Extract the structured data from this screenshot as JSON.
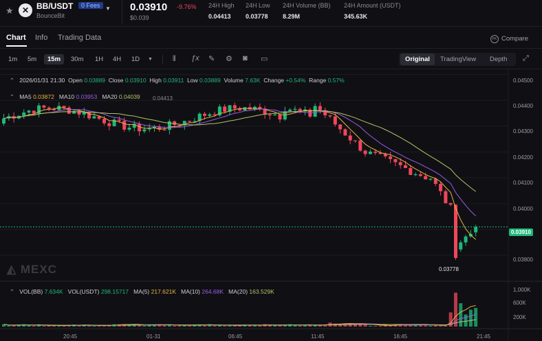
{
  "header": {
    "pair": "BB/USDT",
    "fees_badge": "0 Fees",
    "exchange": "BounceBit",
    "price": "0.03910",
    "change": "-9.76%",
    "usd_price": "$0.039",
    "stats": [
      {
        "label": "24H High",
        "value": "0.04413"
      },
      {
        "label": "24H Low",
        "value": "0.03778"
      },
      {
        "label": "24H Volume (BB)",
        "value": "8.29M"
      },
      {
        "label": "24H Amount (USDT)",
        "value": "345.63K"
      }
    ]
  },
  "tabs": [
    "Chart",
    "Info",
    "Trading Data"
  ],
  "compare_label": "Compare",
  "timeframes": [
    "1m",
    "5m",
    "15m",
    "30m",
    "1H",
    "4H",
    "1D"
  ],
  "active_timeframe": "15m",
  "view_modes": [
    "Original",
    "TradingView",
    "Depth"
  ],
  "active_view": "Original",
  "ohlc": {
    "date": "2026/01/31 21:30",
    "open_label": "Open",
    "open": "0.03889",
    "close_label": "Close",
    "close": "0.03910",
    "high_label": "High",
    "high": "0.03911",
    "low_label": "Low",
    "low": "0.03889",
    "volume_label": "Volume",
    "volume": "7.63K",
    "change_label": "Change",
    "change": "+0.54%",
    "range_label": "Range",
    "range": "0.57%"
  },
  "ma": {
    "ma5_label": "MA5",
    "ma5": "0.03872",
    "ma10_label": "MA10",
    "ma10": "0.03953",
    "ma20_label": "MA20",
    "ma20": "0.04039"
  },
  "vol": {
    "vol_bb_label": "VOL(BB)",
    "vol_bb": "7.634K",
    "vol_usdt_label": "VOL(USDT)",
    "vol_usdt": "298.15717",
    "ma5_label": "MA(5)",
    "ma5": "217.621K",
    "ma10_label": "MA(10)",
    "ma10": "264.68K",
    "ma20_label": "MA(20)",
    "ma20": "163.529K"
  },
  "high_marker": "0.04413",
  "low_marker": "0.03778",
  "current_price_tag": "0.03910",
  "watermark": "MEXC",
  "colors": {
    "up": "#1fb87a",
    "down": "#f0465b",
    "ma5": "#e8b341",
    "ma10": "#9b5de5",
    "ma20": "#b4c46a",
    "accent": "#3b6cf6"
  },
  "chart_data": {
    "type": "candlestick",
    "price_axis": {
      "ticks": [
        "0.04500",
        "0.04400",
        "0.04300",
        "0.04200",
        "0.04100",
        "0.04000",
        "0.03800"
      ],
      "range": [
        0.0375,
        0.0452
      ]
    },
    "volume_axis": {
      "ticks": [
        "1,000K",
        "600K",
        "200K"
      ],
      "range": [
        0,
        1000000
      ]
    },
    "time_axis": [
      "20:45",
      "01-31",
      "06:45",
      "11:45",
      "16:45",
      "21:45"
    ],
    "candle_count": 95,
    "series_summary": "Sideways range roughly 0.0428-0.0440 for most of the period, then a decline from about 0.0439 to a low of 0.03778 and a small rebound to 0.03910"
  }
}
